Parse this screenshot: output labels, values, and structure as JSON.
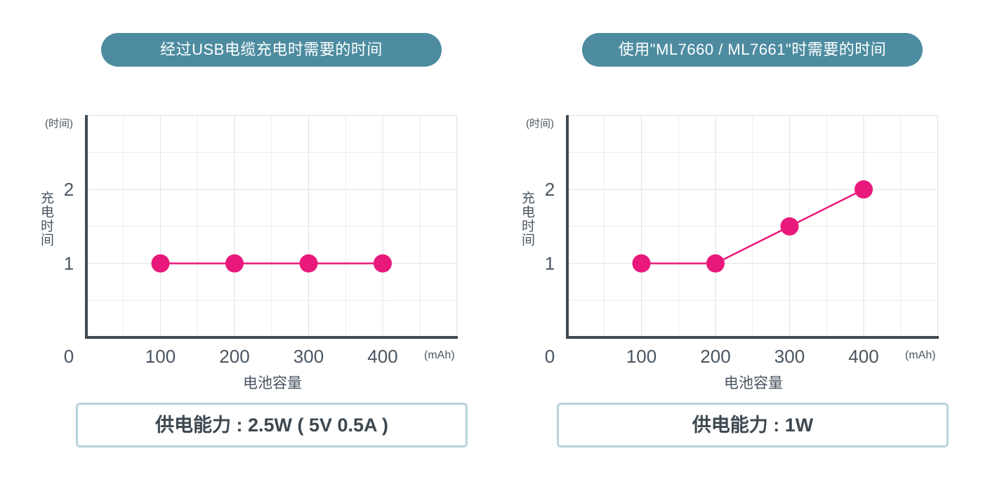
{
  "theme": {
    "pill_color": "#4d8ca0",
    "line_color": "#e8197a",
    "axis_color": "#3f4a52",
    "box_border": "#b9d3dd"
  },
  "panels": [
    {
      "title": "经过USB电缆充电时需要的时间",
      "ylabel": "充电时间",
      "yunit": "(时间)",
      "xunit": "(mAh)",
      "xlabel": "电池容量",
      "power": "供电能力 : 2.5W ( 5V 0.5A )"
    },
    {
      "title": "使用\"ML7660 / ML7661\"时需要的时间",
      "ylabel": "充电时间",
      "yunit": "(时间)",
      "xunit": "(mAh)",
      "xlabel": "电池容量",
      "power": "供电能力 : 1W"
    }
  ],
  "chart_data": [
    {
      "type": "line",
      "x": [
        100,
        200,
        300,
        400
      ],
      "series": [
        {
          "values": [
            1,
            1,
            1,
            1
          ]
        }
      ],
      "xticks": [
        "0",
        "100",
        "200",
        "300",
        "400"
      ],
      "yticks": [
        "1",
        "2"
      ],
      "xlim": [
        0,
        500
      ],
      "ylim": [
        0,
        3
      ],
      "xlabel": "电池容量",
      "ylabel": "充电时间",
      "grid": true
    },
    {
      "type": "line",
      "x": [
        100,
        200,
        300,
        400
      ],
      "series": [
        {
          "values": [
            1,
            1,
            1.5,
            2
          ]
        }
      ],
      "xticks": [
        "0",
        "100",
        "200",
        "300",
        "400"
      ],
      "yticks": [
        "1",
        "2"
      ],
      "xlim": [
        0,
        500
      ],
      "ylim": [
        0,
        3
      ],
      "xlabel": "电池容量",
      "ylabel": "充电时间",
      "grid": true
    }
  ]
}
